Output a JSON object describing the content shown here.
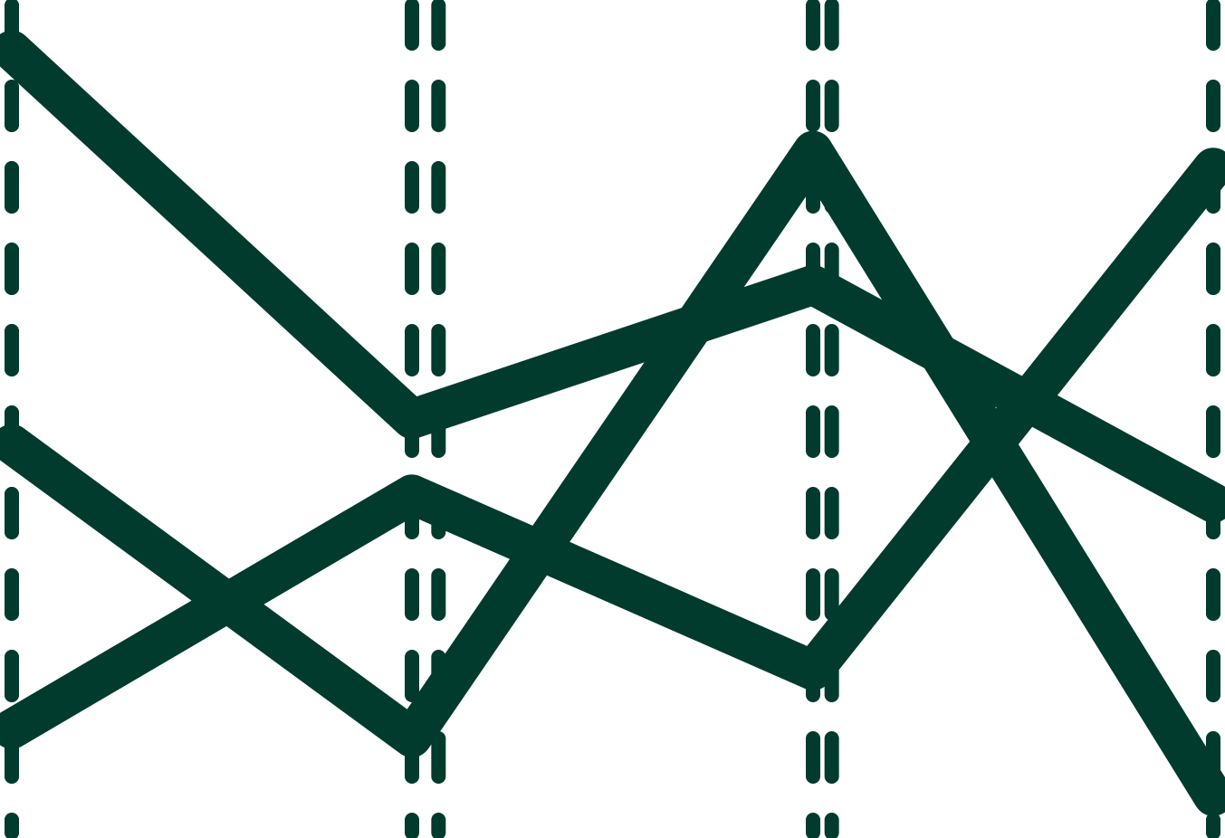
{
  "chart_data": {
    "type": "line",
    "x": [
      0,
      1,
      2,
      3
    ],
    "ylim": [
      0,
      1
    ],
    "grid": "vertical-dashed",
    "legend": "none",
    "colors": {
      "line": "#013b2d",
      "grid": "#013b2d",
      "background": "#ffffff"
    },
    "series": [
      {
        "values": [
          0.94,
          0.5,
          0.66,
          0.4
        ]
      },
      {
        "values": [
          0.47,
          0.12,
          0.82,
          0.05
        ]
      },
      {
        "values": [
          0.13,
          0.41,
          0.2,
          0.8
        ]
      }
    ]
  }
}
